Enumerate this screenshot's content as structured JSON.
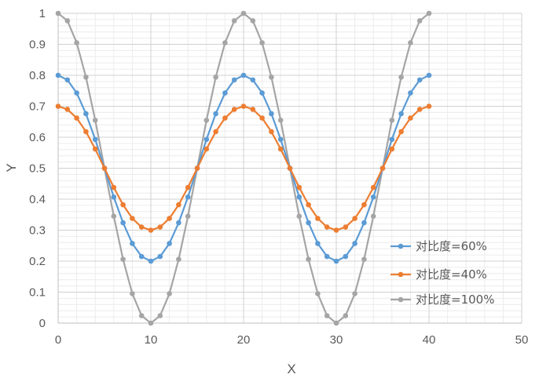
{
  "chart_data": {
    "type": "line",
    "title": "",
    "xlabel": "X",
    "ylabel": "Y",
    "xlim": [
      0,
      50
    ],
    "ylim": [
      0,
      1
    ],
    "xticks": [
      0,
      10,
      20,
      30,
      40,
      50
    ],
    "yticks": [
      0,
      0.1,
      0.2,
      0.3,
      0.4,
      0.5,
      0.6,
      0.7,
      0.8,
      0.9,
      1
    ],
    "grid": true,
    "legend_position": "bottom-right",
    "x": [
      0,
      1,
      2,
      3,
      4,
      5,
      6,
      7,
      8,
      9,
      10,
      11,
      12,
      13,
      14,
      15,
      16,
      17,
      18,
      19,
      20,
      21,
      22,
      23,
      24,
      25,
      26,
      27,
      28,
      29,
      30,
      31,
      32,
      33,
      34,
      35,
      36,
      37,
      38,
      39,
      40
    ],
    "series": [
      {
        "name": "对比度=60%",
        "color": "#5b9bd5",
        "values": [
          0.8,
          0.785,
          0.743,
          0.676,
          0.593,
          0.5,
          0.407,
          0.324,
          0.257,
          0.215,
          0.2,
          0.215,
          0.257,
          0.324,
          0.407,
          0.5,
          0.593,
          0.676,
          0.743,
          0.785,
          0.8,
          0.785,
          0.743,
          0.676,
          0.593,
          0.5,
          0.407,
          0.324,
          0.257,
          0.215,
          0.2,
          0.215,
          0.257,
          0.324,
          0.407,
          0.5,
          0.593,
          0.676,
          0.743,
          0.785,
          0.8
        ]
      },
      {
        "name": "对比度=40%",
        "color": "#ed7d31",
        "values": [
          0.7,
          0.69,
          0.662,
          0.618,
          0.562,
          0.5,
          0.438,
          0.382,
          0.338,
          0.31,
          0.3,
          0.31,
          0.338,
          0.382,
          0.438,
          0.5,
          0.562,
          0.618,
          0.662,
          0.69,
          0.7,
          0.69,
          0.662,
          0.618,
          0.562,
          0.5,
          0.438,
          0.382,
          0.338,
          0.31,
          0.3,
          0.31,
          0.338,
          0.382,
          0.438,
          0.5,
          0.562,
          0.618,
          0.662,
          0.69,
          0.7
        ]
      },
      {
        "name": "对比度=100%",
        "color": "#a5a5a5",
        "values": [
          1,
          0.976,
          0.905,
          0.794,
          0.655,
          0.5,
          0.345,
          0.206,
          0.095,
          0.024,
          0,
          0.024,
          0.095,
          0.206,
          0.345,
          0.5,
          0.655,
          0.794,
          0.905,
          0.976,
          1,
          0.976,
          0.905,
          0.794,
          0.655,
          0.5,
          0.345,
          0.206,
          0.095,
          0.024,
          0,
          0.024,
          0.095,
          0.206,
          0.345,
          0.5,
          0.655,
          0.794,
          0.905,
          0.976,
          1
        ]
      }
    ]
  }
}
